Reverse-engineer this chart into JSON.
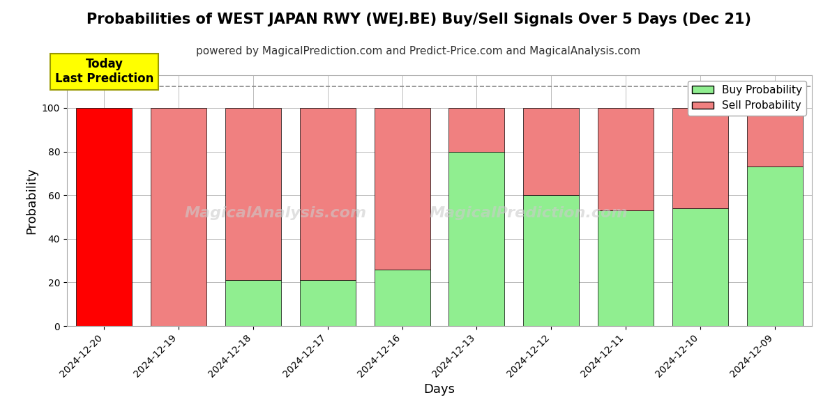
{
  "title": "Probabilities of WEST JAPAN RWY (WEJ.BE) Buy/Sell Signals Over 5 Days (Dec 21)",
  "subtitle": "powered by MagicalPrediction.com and Predict-Price.com and MagicalAnalysis.com",
  "xlabel": "Days",
  "ylabel": "Probability",
  "dates": [
    "2024-12-20",
    "2024-12-19",
    "2024-12-18",
    "2024-12-17",
    "2024-12-16",
    "2024-12-13",
    "2024-12-12",
    "2024-12-11",
    "2024-12-10",
    "2024-12-09"
  ],
  "buy_probs": [
    0,
    0,
    21,
    21,
    26,
    80,
    60,
    53,
    54,
    73
  ],
  "sell_probs": [
    100,
    100,
    79,
    79,
    74,
    20,
    40,
    47,
    46,
    27
  ],
  "buy_color_default": "#90EE90",
  "sell_color_default": "#F08080",
  "buy_color_today": "#FF0000",
  "sell_color_today": "#FF0000",
  "today_label": "Today\nLast Prediction",
  "today_label_bg": "#FFFF00",
  "dashed_line_y": 110,
  "ylim": [
    0,
    115
  ],
  "yticks": [
    0,
    20,
    40,
    60,
    80,
    100
  ],
  "legend_buy": "Buy Probability",
  "legend_sell": "Sell Probability",
  "grid_color": "#aaaaaa",
  "bar_edge_color": "#000000",
  "title_fontsize": 15,
  "subtitle_fontsize": 11,
  "label_fontsize": 13,
  "tick_fontsize": 10,
  "legend_fontsize": 11,
  "bar_width": 0.75
}
